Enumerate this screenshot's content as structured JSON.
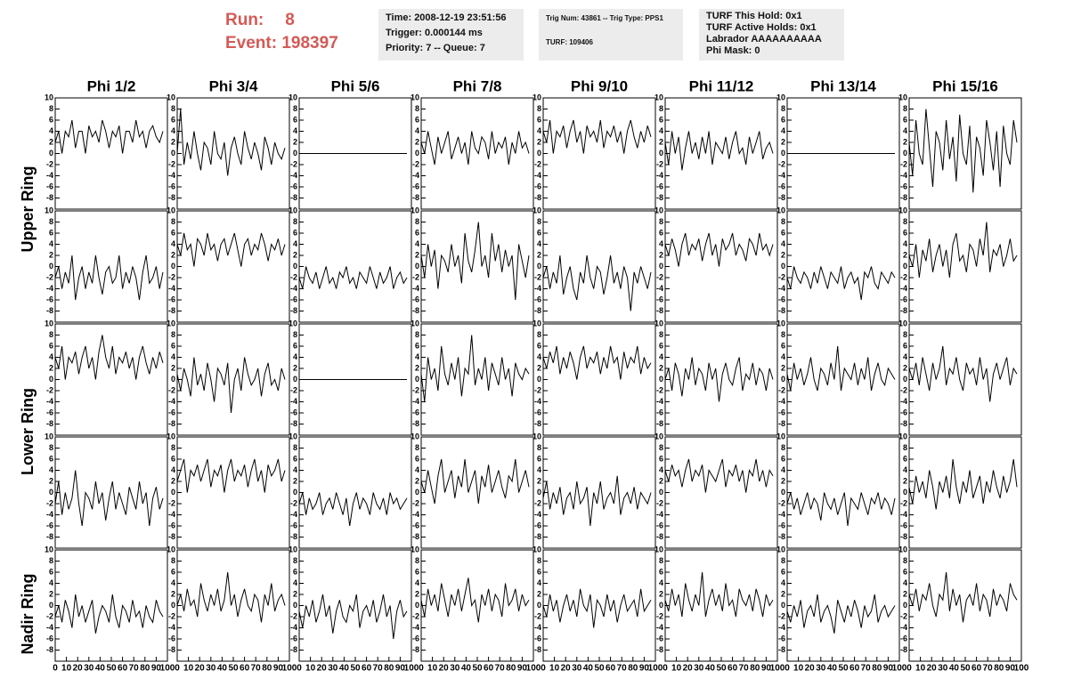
{
  "header": {
    "run_label": "Run:",
    "run": 8,
    "event_label": "Event:",
    "event": 198397,
    "box1": [
      "Time: 2008-12-19 23:51:56",
      "Trigger: 0.000144 ms",
      "Priority: 7 -- Queue: 7"
    ],
    "box2": [
      "Trig Num: 43861 -- Trig Type: PPS1",
      "TURF: 109406"
    ],
    "box3": [
      "TURF This Hold: 0x1",
      "TURF Active Holds: 0x1",
      "Labrador AAAAAAAAAA",
      "Phi Mask: 0"
    ]
  },
  "chart_data": {
    "type": "line",
    "color": "#000000",
    "column_titles": [
      "Phi 1/2",
      "Phi 3/4",
      "Phi 5/6",
      "Phi 7/8",
      "Phi 9/10",
      "Phi 11/12",
      "Phi 13/14",
      "Phi 15/16"
    ],
    "ring_labels": [
      "Upper Ring",
      "Lower Ring",
      "Nadir Ring"
    ],
    "xlim": [
      0,
      100
    ],
    "xticks": [
      0,
      10,
      20,
      30,
      40,
      50,
      60,
      70,
      80,
      90,
      100
    ],
    "ylim": [
      -10,
      10
    ],
    "yticks": [
      -8,
      -6,
      -4,
      -2,
      0,
      2,
      4,
      6,
      8,
      10
    ],
    "x": [
      0,
      3,
      6,
      9,
      12,
      15,
      18,
      21,
      24,
      27,
      30,
      33,
      36,
      39,
      42,
      45,
      48,
      51,
      54,
      57,
      60,
      63,
      66,
      69,
      72,
      75,
      78,
      81,
      84,
      87,
      90,
      93,
      96
    ],
    "waveforms": [
      [
        [
          2,
          4,
          0,
          4,
          3,
          6,
          1,
          4,
          4,
          0,
          5,
          3,
          4,
          2,
          6,
          4,
          1,
          4,
          3,
          5,
          0,
          4,
          4,
          2,
          6,
          3,
          4,
          1,
          4,
          5,
          3,
          2,
          4
        ],
        [
          0,
          8,
          -2,
          2,
          -1,
          4,
          0,
          -3,
          2,
          1,
          -2,
          4,
          0,
          -1,
          2,
          -4,
          1,
          3,
          0,
          -2,
          4,
          1,
          -1,
          2,
          0,
          -3,
          3,
          1,
          -2,
          2,
          0,
          -1,
          1
        ],
        [
          0,
          0,
          0,
          0,
          0,
          0,
          0,
          0,
          0,
          0,
          0,
          0,
          0,
          0,
          0,
          0,
          0,
          0,
          0,
          0,
          0,
          0,
          0,
          0,
          0,
          0,
          0,
          0,
          0,
          0,
          0,
          0,
          0
        ],
        [
          2,
          0,
          4,
          1,
          -2,
          3,
          0,
          2,
          4,
          -1,
          1,
          3,
          0,
          2,
          -2,
          4,
          1,
          0,
          3,
          2,
          -1,
          4,
          0,
          2,
          1,
          3,
          -2,
          2,
          0,
          4,
          1,
          2,
          0
        ],
        [
          4,
          2,
          6,
          0,
          4,
          3,
          5,
          1,
          4,
          6,
          2,
          4,
          0,
          5,
          3,
          4,
          2,
          6,
          1,
          4,
          3,
          5,
          2,
          4,
          0,
          4,
          6,
          3,
          1,
          4,
          2,
          5,
          3
        ],
        [
          2,
          -2,
          4,
          0,
          3,
          -3,
          1,
          4,
          0,
          2,
          -1,
          3,
          0,
          4,
          -2,
          2,
          1,
          0,
          3,
          -1,
          2,
          4,
          0,
          1,
          -2,
          3,
          0,
          2,
          4,
          -1,
          1,
          2,
          0
        ],
        [
          0,
          0,
          0,
          0,
          0,
          0,
          0,
          0,
          0,
          0,
          0,
          0,
          0,
          0,
          0,
          0,
          0,
          0,
          0,
          0,
          0,
          0,
          0,
          0,
          0,
          0,
          0,
          0,
          0,
          0,
          0,
          0,
          0
        ],
        [
          2,
          -4,
          6,
          0,
          -2,
          8,
          1,
          -6,
          4,
          2,
          -3,
          6,
          -1,
          3,
          -5,
          7,
          0,
          -2,
          5,
          -7,
          3,
          1,
          -4,
          6,
          2,
          -3,
          4,
          -6,
          5,
          0,
          -2,
          6,
          2
        ]
      ],
      [
        [
          -2,
          0,
          -4,
          -1,
          -3,
          2,
          -6,
          -2,
          0,
          -4,
          -1,
          -3,
          2,
          -2,
          -5,
          -1,
          0,
          -3,
          -2,
          2,
          -4,
          -1,
          -3,
          0,
          -2,
          -6,
          -1,
          2,
          -3,
          -2,
          0,
          -4,
          -1
        ],
        [
          4,
          2,
          6,
          3,
          4,
          0,
          5,
          4,
          2,
          6,
          3,
          4,
          1,
          4,
          5,
          2,
          4,
          6,
          3,
          0,
          4,
          5,
          2,
          4,
          3,
          6,
          4,
          1,
          4,
          3,
          5,
          2,
          4
        ],
        [
          -2,
          -4,
          0,
          -2,
          -3,
          -1,
          -4,
          -2,
          0,
          -3,
          -2,
          -4,
          -1,
          -2,
          0,
          -3,
          -2,
          -4,
          -1,
          -2,
          -3,
          0,
          -2,
          -4,
          -1,
          -3,
          -2,
          0,
          -4,
          -2,
          -1,
          -3,
          -2
        ],
        [
          2,
          -2,
          4,
          0,
          3,
          -4,
          2,
          1,
          -1,
          4,
          0,
          2,
          -3,
          6,
          1,
          -1,
          3,
          8,
          0,
          2,
          -2,
          6,
          1,
          4,
          -1,
          3,
          0,
          2,
          -6,
          4,
          1,
          -2,
          2
        ],
        [
          -2,
          0,
          -4,
          -1,
          -3,
          2,
          -5,
          -2,
          0,
          -4,
          -6,
          -1,
          -3,
          2,
          -2,
          -4,
          0,
          -1,
          -5,
          -2,
          2,
          -3,
          -1,
          -4,
          0,
          -2,
          -8,
          -1,
          -3,
          0,
          -2,
          -4,
          -1
        ],
        [
          4,
          2,
          5,
          3,
          0,
          4,
          6,
          2,
          4,
          3,
          5,
          1,
          4,
          6,
          2,
          4,
          0,
          5,
          3,
          4,
          6,
          2,
          4,
          3,
          1,
          5,
          4,
          2,
          6,
          3,
          4,
          2,
          4
        ],
        [
          -2,
          -4,
          0,
          -2,
          -3,
          -1,
          -2,
          -4,
          -1,
          -3,
          0,
          -2,
          -4,
          -1,
          -2,
          -3,
          0,
          -4,
          -2,
          -1,
          -3,
          -2,
          -6,
          -1,
          -2,
          0,
          -3,
          -4,
          -1,
          -2,
          -3,
          -1,
          -2
        ],
        [
          2,
          0,
          4,
          -2,
          3,
          1,
          5,
          -1,
          2,
          4,
          0,
          3,
          -2,
          4,
          6,
          1,
          2,
          -1,
          4,
          3,
          0,
          5,
          2,
          8,
          -1,
          3,
          2,
          4,
          0,
          2,
          5,
          1,
          2
        ]
      ],
      [
        [
          4,
          2,
          6,
          0,
          4,
          3,
          5,
          1,
          4,
          6,
          2,
          4,
          0,
          5,
          8,
          4,
          2,
          6,
          1,
          4,
          3,
          5,
          2,
          4,
          0,
          4,
          6,
          3,
          1,
          4,
          2,
          5,
          3
        ],
        [
          1,
          -2,
          2,
          0,
          -3,
          4,
          -1,
          1,
          -2,
          3,
          0,
          -4,
          2,
          1,
          -1,
          3,
          -6,
          0,
          2,
          -2,
          4,
          1,
          -1,
          0,
          2,
          -3,
          1,
          3,
          -1,
          0,
          -2,
          2,
          0
        ],
        [
          0,
          0,
          0,
          0,
          0,
          0,
          0,
          0,
          0,
          0,
          0,
          0,
          0,
          0,
          0,
          0,
          0,
          0,
          0,
          0,
          0,
          0,
          0,
          0,
          0,
          0,
          0,
          0,
          0,
          0,
          0,
          0,
          0
        ],
        [
          1,
          -4,
          4,
          0,
          2,
          -2,
          6,
          1,
          -1,
          3,
          0,
          4,
          -3,
          2,
          1,
          8,
          -1,
          2,
          0,
          4,
          -2,
          3,
          1,
          -1,
          4,
          0,
          2,
          -3,
          3,
          1,
          0,
          2,
          1
        ],
        [
          4,
          2,
          5,
          3,
          6,
          1,
          4,
          2,
          5,
          3,
          0,
          4,
          6,
          2,
          4,
          3,
          5,
          1,
          4,
          2,
          6,
          3,
          4,
          0,
          5,
          2,
          4,
          3,
          6,
          1,
          4,
          2,
          3
        ],
        [
          0,
          2,
          -2,
          3,
          1,
          -3,
          2,
          0,
          4,
          -1,
          2,
          1,
          -2,
          3,
          0,
          2,
          -4,
          1,
          3,
          0,
          -1,
          2,
          4,
          -2,
          1,
          0,
          3,
          -1,
          2,
          1,
          -2,
          2,
          0
        ],
        [
          1,
          -2,
          3,
          0,
          2,
          -1,
          1,
          4,
          0,
          -2,
          2,
          1,
          -1,
          3,
          0,
          6,
          -2,
          2,
          1,
          0,
          3,
          -1,
          2,
          0,
          4,
          -2,
          1,
          3,
          0,
          -1,
          2,
          1,
          0
        ],
        [
          2,
          0,
          3,
          -1,
          4,
          1,
          -2,
          3,
          0,
          2,
          6,
          -1,
          2,
          1,
          4,
          0,
          -2,
          3,
          1,
          2,
          -1,
          4,
          0,
          2,
          -4,
          1,
          3,
          0,
          2,
          4,
          -1,
          2,
          1
        ]
      ],
      [
        [
          -2,
          2,
          -4,
          0,
          -3,
          -1,
          4,
          -2,
          -6,
          0,
          -1,
          -3,
          2,
          -2,
          0,
          -5,
          -1,
          2,
          -3,
          0,
          -2,
          -4,
          1,
          -1,
          -3,
          2,
          -2,
          0,
          -6,
          -1,
          1,
          -3,
          -1
        ],
        [
          2,
          4,
          6,
          0,
          4,
          3,
          5,
          2,
          4,
          6,
          1,
          4,
          3,
          5,
          0,
          4,
          6,
          2,
          4,
          3,
          5,
          1,
          4,
          6,
          2,
          4,
          0,
          5,
          3,
          4,
          6,
          2,
          4
        ],
        [
          -2,
          0,
          -4,
          -1,
          -3,
          -2,
          0,
          -4,
          -2,
          -1,
          -3,
          0,
          -2,
          -4,
          -1,
          -6,
          -2,
          0,
          -3,
          -1,
          -2,
          -4,
          0,
          -2,
          -3,
          -1,
          -4,
          0,
          -2,
          -1,
          -3,
          -2,
          -1
        ],
        [
          2,
          0,
          4,
          1,
          -2,
          3,
          6,
          0,
          2,
          4,
          -1,
          3,
          1,
          6,
          0,
          2,
          4,
          -2,
          3,
          1,
          5,
          0,
          2,
          4,
          1,
          -1,
          3,
          2,
          6,
          0,
          2,
          4,
          1
        ],
        [
          -1,
          2,
          -3,
          0,
          -2,
          1,
          -4,
          -1,
          0,
          -3,
          2,
          -2,
          -1,
          1,
          -6,
          0,
          -2,
          2,
          -3,
          -1,
          0,
          -2,
          3,
          -4,
          -1,
          0,
          -2,
          1,
          -3,
          0,
          -1,
          -2,
          0
        ],
        [
          4,
          2,
          5,
          3,
          4,
          1,
          4,
          6,
          2,
          4,
          3,
          5,
          0,
          4,
          3,
          2,
          4,
          6,
          1,
          4,
          3,
          5,
          2,
          4,
          0,
          4,
          3,
          6,
          2,
          4,
          1,
          4,
          3
        ],
        [
          -2,
          0,
          -3,
          -1,
          -4,
          -2,
          0,
          -3,
          -1,
          -2,
          -5,
          0,
          -2,
          -3,
          -1,
          -4,
          -2,
          0,
          -6,
          -1,
          -2,
          -3,
          0,
          -2,
          -4,
          -1,
          -2,
          0,
          -3,
          -1,
          -2,
          -4,
          -1
        ],
        [
          1,
          -2,
          3,
          0,
          2,
          -1,
          4,
          1,
          -3,
          2,
          0,
          3,
          -1,
          6,
          1,
          -2,
          2,
          0,
          4,
          -1,
          1,
          3,
          -2,
          2,
          0,
          4,
          1,
          -1,
          3,
          0,
          2,
          6,
          1
        ]
      ],
      [
        [
          -2,
          0,
          -3,
          1,
          -1,
          -4,
          2,
          -2,
          0,
          -3,
          -1,
          1,
          -5,
          -2,
          0,
          -1,
          -3,
          2,
          -2,
          -4,
          0,
          -1,
          -3,
          1,
          -2,
          -1,
          -4,
          0,
          -2,
          -3,
          1,
          -1,
          -2
        ],
        [
          0,
          2,
          -1,
          3,
          0,
          1,
          -2,
          4,
          1,
          -1,
          2,
          0,
          3,
          -1,
          1,
          6,
          0,
          2,
          -2,
          1,
          3,
          0,
          -1,
          2,
          1,
          -3,
          2,
          0,
          4,
          -1,
          1,
          2,
          0
        ],
        [
          -1,
          -4,
          0,
          -2,
          1,
          -3,
          -1,
          2,
          -2,
          0,
          -5,
          -1,
          1,
          -2,
          -3,
          0,
          -1,
          2,
          -4,
          -1,
          0,
          -2,
          1,
          -3,
          -1,
          2,
          -2,
          0,
          -6,
          -1,
          1,
          -2,
          -1
        ],
        [
          1,
          -2,
          3,
          0,
          2,
          -1,
          4,
          1,
          -2,
          2,
          0,
          3,
          -1,
          2,
          5,
          0,
          1,
          -3,
          2,
          0,
          3,
          -1,
          2,
          1,
          -2,
          4,
          0,
          1,
          3,
          -1,
          2,
          0,
          1
        ],
        [
          0,
          -2,
          2,
          -1,
          1,
          -3,
          0,
          2,
          -1,
          1,
          -2,
          3,
          0,
          -1,
          2,
          -4,
          1,
          0,
          -2,
          2,
          -1,
          1,
          -3,
          0,
          2,
          -1,
          0,
          1,
          -2,
          3,
          -1,
          0,
          1
        ],
        [
          1,
          -1,
          3,
          0,
          2,
          -2,
          4,
          1,
          -1,
          2,
          0,
          6,
          -2,
          1,
          3,
          0,
          2,
          -1,
          4,
          0,
          1,
          -2,
          3,
          1,
          0,
          2,
          -1,
          3,
          1,
          -2,
          2,
          0,
          1
        ],
        [
          -1,
          -3,
          0,
          -2,
          1,
          -4,
          -1,
          0,
          -2,
          2,
          -3,
          -1,
          0,
          -2,
          -5,
          1,
          -1,
          -3,
          0,
          -2,
          1,
          -1,
          -4,
          0,
          -2,
          -1,
          2,
          -3,
          -1,
          0,
          -2,
          -1,
          0
        ],
        [
          2,
          0,
          3,
          -1,
          2,
          1,
          4,
          0,
          -2,
          2,
          1,
          6,
          -1,
          3,
          0,
          2,
          -3,
          1,
          2,
          0,
          4,
          -1,
          2,
          1,
          -2,
          3,
          0,
          2,
          1,
          -1,
          4,
          2,
          1
        ]
      ]
    ]
  }
}
